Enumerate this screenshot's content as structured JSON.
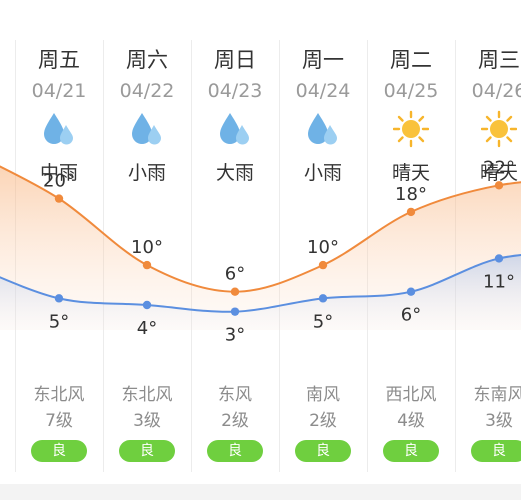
{
  "days": [
    {
      "day": "周五",
      "date": "04/21",
      "icon": "rain-drops-icon",
      "condition": "中雨",
      "high": 20,
      "low": 5,
      "wind_dir": "东北风",
      "wind_level": "7级",
      "aqi": "良"
    },
    {
      "day": "周六",
      "date": "04/22",
      "icon": "rain-drops-icon",
      "condition": "小雨",
      "high": 10,
      "low": 4,
      "wind_dir": "东北风",
      "wind_level": "3级",
      "aqi": "良"
    },
    {
      "day": "周日",
      "date": "04/23",
      "icon": "rain-drops-icon",
      "condition": "大雨",
      "high": 6,
      "low": 3,
      "wind_dir": "东风",
      "wind_level": "2级",
      "aqi": "良"
    },
    {
      "day": "周一",
      "date": "04/24",
      "icon": "rain-drops-icon",
      "condition": "小雨",
      "high": 10,
      "low": 5,
      "wind_dir": "南风",
      "wind_level": "2级",
      "aqi": "良"
    },
    {
      "day": "周二",
      "date": "04/25",
      "icon": "sun-icon",
      "condition": "晴天",
      "high": 18,
      "low": 6,
      "wind_dir": "西北风",
      "wind_level": "4级",
      "aqi": "良"
    },
    {
      "day": "周三",
      "date": "04/26",
      "icon": "sun-icon",
      "condition": "晴天",
      "high": 22,
      "low": 11,
      "wind_dir": "东南风",
      "wind_level": "3级",
      "aqi": "良"
    }
  ],
  "colors": {
    "high_line": "#f08a3c",
    "low_line": "#5b8fe0",
    "aqi_good": "#6fcf3f",
    "sun": "#f7b52b",
    "rain": "#6fb2e6"
  }
}
